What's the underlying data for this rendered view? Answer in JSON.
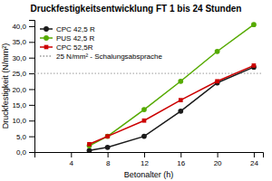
{
  "chart_data": {
    "type": "line",
    "title": "Druckfestigkeitsentwicklung FT 1 bis 24 Stunden",
    "x_label": "Betonalter (h)",
    "y_label": "Druckfestigkeit (N/mm²)",
    "x": [
      6,
      8,
      12,
      16,
      20,
      24
    ],
    "series": [
      {
        "name": "CPC 42,5 R",
        "color": "#1a1a1a",
        "marker": "circle",
        "values": [
          0.5,
          1.5,
          5.0,
          13.0,
          22.0,
          27.0
        ]
      },
      {
        "name": "PUS 42,5 R",
        "color": "#55aa00",
        "marker": "circle",
        "values": [
          2.0,
          5.0,
          13.5,
          22.5,
          32.0,
          40.5
        ]
      },
      {
        "name": "CPC 52,5R",
        "color": "#cc0000",
        "marker": "square",
        "values": [
          2.5,
          5.0,
          10.0,
          16.5,
          22.5,
          27.5
        ]
      }
    ],
    "reference_lines": [
      {
        "value": 25.0,
        "name": "25 N/mm² - Schalungsabsprache",
        "color": "#999999",
        "line_style": "dotted"
      }
    ],
    "xlim": [
      0,
      25
    ],
    "ylim": [
      0,
      42
    ],
    "xticks": [
      4,
      8,
      12,
      16,
      20,
      24
    ],
    "yticks": [
      {
        "value": 0.0,
        "label": "0,0"
      },
      {
        "value": 5.0,
        "label": "5,0"
      },
      {
        "value": 10.0,
        "label": "10,0"
      },
      {
        "value": 15.0,
        "label": "15,0"
      },
      {
        "value": 20.0,
        "label": "20,0"
      },
      {
        "value": 25.0,
        "label": "25,0"
      },
      {
        "value": 30.0,
        "label": "30,0"
      },
      {
        "value": 35.0,
        "label": "35,0"
      },
      {
        "value": 40.0,
        "label": "40,0"
      }
    ],
    "grid": false,
    "legend": "upper left"
  }
}
